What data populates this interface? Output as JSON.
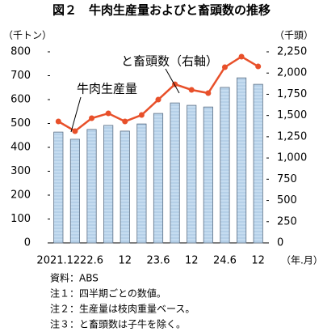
{
  "chart_data": {
    "type": "bar_line",
    "title": "図２　牛肉生産量およびと畜頭数の推移",
    "y_axis_label": "（千トン）",
    "y2_axis_label": "（千頭）",
    "x_axis_label": "（年.月）",
    "categories": [
      "2021.12",
      null,
      "22.6",
      null,
      "12",
      null,
      "23.6",
      null,
      "12",
      null,
      "24.6",
      null,
      "12"
    ],
    "series": [
      {
        "name": "牛肉生産量",
        "type": "bar",
        "color": "#c5dcf0",
        "values": [
          464,
          434,
          475,
          492,
          468,
          498,
          542,
          586,
          576,
          569,
          651,
          691,
          664
        ]
      },
      {
        "name": "と畜頭数（右軸）",
        "type": "line",
        "axis": "y2",
        "color": "#e8502a",
        "values": [
          1430,
          1316,
          1468,
          1525,
          1430,
          1506,
          1687,
          1868,
          1802,
          1764,
          2069,
          2193,
          2078
        ]
      }
    ],
    "ylim": [
      0,
      800
    ],
    "yticks": [
      0,
      100,
      200,
      300,
      400,
      500,
      600,
      700,
      800
    ],
    "y2lim": [
      0,
      2250
    ],
    "y2ticks": [
      0,
      250,
      500,
      750,
      {
        "value": 1000,
        "label": "1,000"
      },
      {
        "value": 1250,
        "label": "1,250"
      },
      {
        "value": 1500,
        "label": "1,500"
      },
      {
        "value": 1750,
        "label": "1,750"
      },
      {
        "value": 2000,
        "label": "2,000"
      },
      {
        "value": 2250,
        "label": "2,250"
      }
    ],
    "notes": [
      "資料：ABS",
      "注１：四半期ごとの数値。",
      "注２：生産量は枝肉重量ベース。",
      "注３：と畜頭数は子牛を除く。"
    ]
  }
}
